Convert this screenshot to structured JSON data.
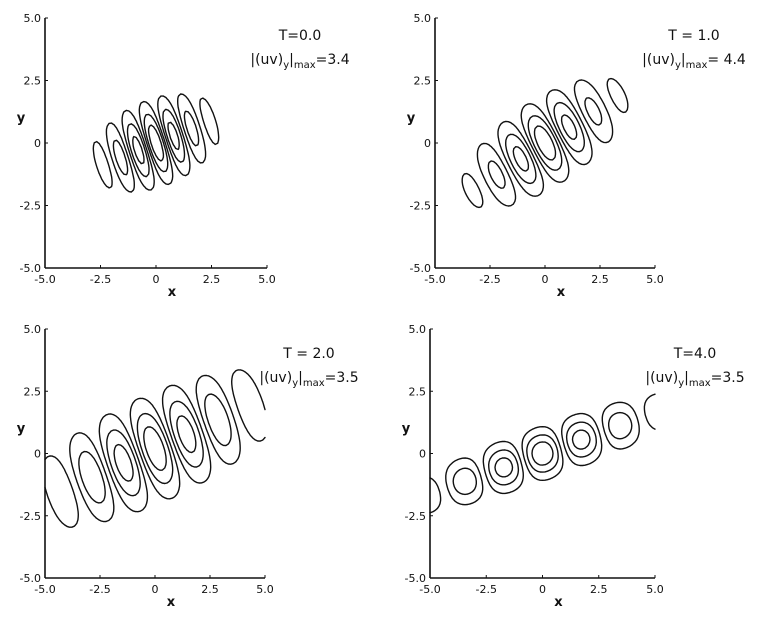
{
  "chart_data": [
    {
      "type": "contour",
      "xlabel": "x",
      "ylabel": "y",
      "xlim": [
        -5.0,
        5.0
      ],
      "ylim": [
        -5.0,
        5.0
      ],
      "xticks": [
        "-5.0",
        "-2.5",
        "0",
        "2.5",
        "5.0"
      ],
      "yticks": [
        "5.0",
        "2.5",
        "0",
        "-2.5",
        "-5.0"
      ],
      "grid": false,
      "annotation": {
        "time_label": "T=0.0",
        "max_prefix": "|(uv)",
        "max_sub": "y",
        "max_mid": "|",
        "max_sub2": "max",
        "max_value": "=3.4"
      },
      "field": {
        "cx": 0.0,
        "cy": 0.0,
        "sx": 1.6,
        "sy": 0.9,
        "k": 3.6,
        "angle_deg": 20,
        "levels": [
          0.15,
          0.4,
          0.7
        ]
      }
    },
    {
      "type": "contour",
      "xlabel": "x",
      "ylabel": "y",
      "xlim": [
        -5.0,
        5.0
      ],
      "ylim": [
        -5.0,
        5.0
      ],
      "xticks": [
        "-5.0",
        "-2.5",
        "0",
        "2.5",
        "5.0"
      ],
      "yticks": [
        "5.0",
        "2.5",
        "0",
        "-2.5",
        "-5.0"
      ],
      "grid": false,
      "annotation": {
        "time_label": "T = 1.0",
        "max_prefix": "|(uv)",
        "max_sub": "y",
        "max_mid": "|",
        "max_sub2": "max",
        "max_value": "= 4.4"
      },
      "field": {
        "cx": 0.0,
        "cy": 0.0,
        "sx": 2.2,
        "sy": 0.9,
        "k": 2.4,
        "angle_deg": 30,
        "levels": [
          0.15,
          0.4,
          0.7
        ]
      }
    },
    {
      "type": "contour",
      "xlabel": "x",
      "ylabel": "y",
      "xlim": [
        -5.0,
        5.0
      ],
      "ylim": [
        -5.0,
        5.0
      ],
      "xticks": [
        "-5.0",
        "-2.5",
        "0",
        "2.5",
        "5.0"
      ],
      "yticks": [
        "5.0",
        "2.5",
        "0",
        "-2.5",
        "-5.0"
      ],
      "grid": false,
      "annotation": {
        "time_label": "T = 2.0",
        "max_prefix": "|(uv)",
        "max_sub": "y",
        "max_mid": "|",
        "max_sub2": "max",
        "max_value": "=3.5"
      },
      "field": {
        "cx": 0.0,
        "cy": 0.2,
        "sx": 3.4,
        "sy": 1.1,
        "k": 2.0,
        "angle_deg": 22,
        "levels": [
          0.15,
          0.4,
          0.7
        ]
      }
    },
    {
      "type": "contour",
      "xlabel": "x",
      "ylabel": "y",
      "xlim": [
        -5.0,
        5.0
      ],
      "ylim": [
        -5.0,
        5.0
      ],
      "xticks": [
        "-5.0",
        "-2.5",
        "0",
        "2.5",
        "5.0"
      ],
      "yticks": [
        "5.0",
        "2.5",
        "0",
        "-2.5",
        "-5.0"
      ],
      "grid": false,
      "annotation": {
        "time_label": "T=4.0",
        "max_prefix": "|(uv)",
        "max_sub": "y",
        "max_mid": "|",
        "max_sub2": "max",
        "max_value": "=3.5"
      },
      "field": {
        "cx": 0.0,
        "cy": 0.0,
        "sx": 3.8,
        "sy": 0.55,
        "k": 1.7,
        "angle_deg": 18,
        "levels": [
          0.15,
          0.4,
          0.7
        ]
      }
    }
  ]
}
